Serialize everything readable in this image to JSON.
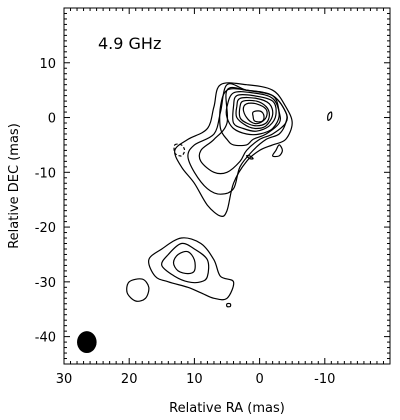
{
  "chart_data": {
    "type": "contour",
    "annotation": "4.9 GHz",
    "xlabel": "Relative RA (mas)",
    "ylabel": "Relative DEC (mas)",
    "xlim": [
      30,
      -20
    ],
    "ylim": [
      -45,
      20
    ],
    "x_direction": "decreasing",
    "xticks": [
      30,
      20,
      10,
      0,
      -10
    ],
    "yticks": [
      10,
      0,
      -10,
      -20,
      -30,
      -40
    ],
    "grid": false,
    "components": [
      {
        "name": "core",
        "center": [
          0,
          0
        ],
        "contour_levels": 10
      },
      {
        "name": "inner jet",
        "center": [
          5,
          -8
        ],
        "contour_levels": 4
      },
      {
        "name": "outer component",
        "center": [
          12,
          -27
        ],
        "contour_levels": 3
      },
      {
        "name": "beam",
        "center": [
          26.5,
          -41
        ]
      }
    ],
    "contours": [
      {
        "style": "solid",
        "points": [
          [
            6,
            6
          ],
          [
            2,
            6
          ],
          [
            -2,
            5
          ],
          [
            -4,
            2
          ],
          [
            -5,
            -1
          ],
          [
            -4,
            -4
          ],
          [
            -2,
            -5
          ],
          [
            0,
            -6
          ],
          [
            2,
            -8
          ],
          [
            4,
            -12
          ],
          [
            5,
            -17
          ],
          [
            6,
            -18
          ],
          [
            8,
            -16
          ],
          [
            10,
            -12
          ],
          [
            12,
            -9
          ],
          [
            13,
            -6
          ],
          [
            11,
            -4
          ],
          [
            8,
            -2
          ],
          [
            7,
            2
          ]
        ]
      },
      {
        "style": "solid",
        "points": [
          [
            5,
            6
          ],
          [
            2,
            5
          ],
          [
            -2,
            4
          ],
          [
            -4,
            1
          ],
          [
            -4,
            -1
          ],
          [
            -3,
            -3
          ],
          [
            -1,
            -4
          ],
          [
            1,
            -6
          ],
          [
            3,
            -9
          ],
          [
            4,
            -13
          ],
          [
            6,
            -14
          ],
          [
            8,
            -13
          ],
          [
            10,
            -10
          ],
          [
            11,
            -7
          ],
          [
            10,
            -5
          ],
          [
            7,
            -3
          ],
          [
            6,
            1
          ]
        ]
      },
      {
        "style": "solid",
        "points": [
          [
            5,
            5
          ],
          [
            2,
            5
          ],
          [
            -2,
            4
          ],
          [
            -4,
            1
          ],
          [
            -4,
            -1
          ],
          [
            -2,
            -3
          ],
          [
            0,
            -4
          ],
          [
            2,
            -6
          ],
          [
            3,
            -8
          ],
          [
            5,
            -10
          ],
          [
            7,
            -10
          ],
          [
            9,
            -8
          ],
          [
            9,
            -6
          ],
          [
            7,
            -4
          ],
          [
            5,
            -1
          ]
        ]
      },
      {
        "style": "solid",
        "points": [
          [
            5,
            5
          ],
          [
            2,
            5
          ],
          [
            -2,
            4
          ],
          [
            -3,
            1
          ],
          [
            -3,
            -1
          ],
          [
            -1,
            -3
          ],
          [
            1,
            -4
          ],
          [
            2,
            -5
          ],
          [
            4,
            -5
          ],
          [
            5,
            -4
          ],
          [
            6,
            -2
          ],
          [
            6,
            2
          ]
        ]
      },
      {
        "style": "solid",
        "points": [
          [
            4,
            4.5
          ],
          [
            1,
            4.5
          ],
          [
            -2,
            3.5
          ],
          [
            -3,
            0.5
          ],
          [
            -2,
            -2
          ],
          [
            0,
            -3
          ],
          [
            2,
            -3
          ],
          [
            4,
            -2
          ],
          [
            5,
            0
          ],
          [
            5,
            2
          ]
        ]
      },
      {
        "style": "solid",
        "points": [
          [
            3.5,
            4
          ],
          [
            1,
            4
          ],
          [
            -2,
            3
          ],
          [
            -2.5,
            0.5
          ],
          [
            -1.5,
            -1.5
          ],
          [
            0.5,
            -2.5
          ],
          [
            2.5,
            -2
          ],
          [
            4,
            -1
          ],
          [
            4,
            2
          ]
        ]
      },
      {
        "style": "solid",
        "points": [
          [
            3,
            3.5
          ],
          [
            0.5,
            3.5
          ],
          [
            -1.5,
            2.5
          ],
          [
            -2,
            0.5
          ],
          [
            -1,
            -1.5
          ],
          [
            0.5,
            -2
          ],
          [
            2,
            -1.5
          ],
          [
            3.5,
            0
          ],
          [
            3.5,
            2
          ]
        ]
      },
      {
        "style": "solid",
        "points": [
          [
            2.5,
            3
          ],
          [
            0.5,
            3
          ],
          [
            -1,
            2
          ],
          [
            -1.5,
            0.5
          ],
          [
            -1,
            -1
          ],
          [
            0.5,
            -1.5
          ],
          [
            2,
            -1
          ],
          [
            3,
            0
          ],
          [
            3,
            2
          ]
        ]
      },
      {
        "style": "solid",
        "points": [
          [
            2,
            2.5
          ],
          [
            0.5,
            2.5
          ],
          [
            -1,
            1.5
          ],
          [
            -1,
            0
          ],
          [
            0,
            -1
          ],
          [
            1,
            -1
          ],
          [
            2,
            0
          ],
          [
            2.5,
            1.5
          ]
        ]
      },
      {
        "style": "solid",
        "points": [
          [
            1,
            1
          ],
          [
            0,
            1.2
          ],
          [
            -0.6,
            0.6
          ],
          [
            -0.6,
            -0.4
          ],
          [
            0,
            -0.8
          ],
          [
            0.8,
            -0.6
          ],
          [
            1,
            0.2
          ]
        ]
      },
      {
        "style": "solid",
        "points": [
          [
            15,
            -24
          ],
          [
            12,
            -22
          ],
          [
            9,
            -23
          ],
          [
            7,
            -26
          ],
          [
            6,
            -29
          ],
          [
            4,
            -30
          ],
          [
            5,
            -33
          ],
          [
            7,
            -33
          ],
          [
            9,
            -32
          ],
          [
            11,
            -31
          ],
          [
            14,
            -30
          ],
          [
            16,
            -29
          ],
          [
            17,
            -26
          ]
        ]
      },
      {
        "style": "solid",
        "points": [
          [
            14,
            -25
          ],
          [
            12,
            -23
          ],
          [
            10,
            -24
          ],
          [
            8,
            -26
          ],
          [
            8,
            -29
          ],
          [
            9,
            -30
          ],
          [
            11,
            -30
          ],
          [
            13,
            -29
          ],
          [
            15,
            -27
          ]
        ]
      },
      {
        "style": "solid",
        "points": [
          [
            12.5,
            -25
          ],
          [
            11,
            -24.5
          ],
          [
            10,
            -26
          ],
          [
            10,
            -28
          ],
          [
            11,
            -28.5
          ],
          [
            12.5,
            -28
          ],
          [
            13.2,
            -26.5
          ]
        ]
      },
      {
        "style": "solid",
        "points": [
          [
            20,
            -30
          ],
          [
            18,
            -29.5
          ],
          [
            17,
            -31
          ],
          [
            17.5,
            -33
          ],
          [
            19,
            -33.5
          ],
          [
            20.3,
            -32
          ]
        ]
      },
      {
        "style": "solid",
        "points": [
          [
            -2,
            -7
          ],
          [
            -3,
            -7
          ],
          [
            -3.5,
            -6
          ],
          [
            -3,
            -5
          ],
          [
            -2.5,
            -6
          ]
        ]
      },
      {
        "style": "solid",
        "points": [
          [
            -10.5,
            -0.5
          ],
          [
            -11,
            0
          ],
          [
            -11,
            1
          ],
          [
            -10.5,
            0.5
          ]
        ]
      },
      {
        "style": "solid",
        "points": [
          [
            5,
            -34
          ],
          [
            4.5,
            -34
          ],
          [
            4.5,
            -34.5
          ],
          [
            5,
            -34.5
          ]
        ]
      },
      {
        "style": "solid",
        "points": [
          [
            2,
            -7
          ],
          [
            1.5,
            -7.5
          ],
          [
            1,
            -7.5
          ],
          [
            1.5,
            -7
          ]
        ]
      },
      {
        "style": "dashed",
        "points": [
          [
            13,
            -5
          ],
          [
            12,
            -5
          ],
          [
            11.5,
            -6
          ],
          [
            12,
            -7
          ],
          [
            13,
            -6.5
          ]
        ]
      }
    ],
    "beam": {
      "x": 26.5,
      "y": -41,
      "rx": 1.5,
      "ry": 2
    }
  }
}
